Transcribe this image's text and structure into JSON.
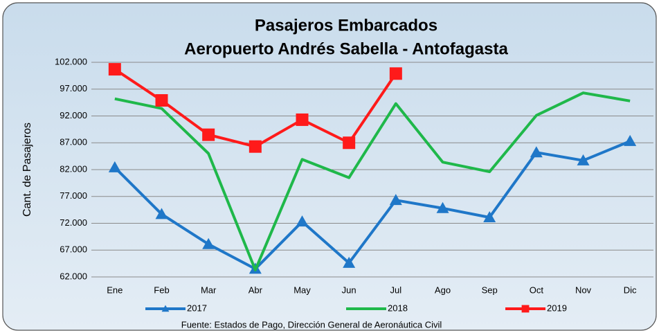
{
  "chart_data": {
    "type": "line",
    "title": "Pasajeros Embarcados",
    "subtitle": "Aeropuerto Andrés Sabella - Antofagasta",
    "y_label": "Cant. de Pasajeros",
    "source": "Fuente: Estados de Pago, Dirección General de Aeronáutica Civil",
    "categories": [
      "Ene",
      "Feb",
      "Mar",
      "Abr",
      "May",
      "Jun",
      "Jul",
      "Ago",
      "Sep",
      "Oct",
      "Nov",
      "Dic"
    ],
    "series": [
      {
        "name": "2017",
        "color": "#1f77c8",
        "marker": "triangle",
        "values": [
          82400,
          73700,
          68100,
          63500,
          72300,
          64600,
          76300,
          74800,
          73100,
          85200,
          83700,
          87300
        ]
      },
      {
        "name": "2018",
        "color": "#1fb84a",
        "marker": "none",
        "values": [
          95200,
          93400,
          85000,
          63300,
          83900,
          80500,
          94300,
          83400,
          81600,
          92100,
          96300,
          94800
        ]
      },
      {
        "name": "2019",
        "color": "#ff1a1a",
        "marker": "square",
        "values": [
          100700,
          94900,
          88500,
          86300,
          91300,
          87000,
          99900,
          null,
          null,
          null,
          null,
          null
        ]
      }
    ],
    "ylim": [
      62000,
      102000
    ],
    "yticks": [
      {
        "value": 62000,
        "label": "62.000"
      },
      {
        "value": 67000,
        "label": "67.000"
      },
      {
        "value": 72000,
        "label": "72.000"
      },
      {
        "value": 77000,
        "label": "77.000"
      },
      {
        "value": 82000,
        "label": "82.000"
      },
      {
        "value": 87000,
        "label": "87.000"
      },
      {
        "value": 92000,
        "label": "92.000"
      },
      {
        "value": 97000,
        "label": "97.000"
      },
      {
        "value": 102000,
        "label": "102.000"
      }
    ],
    "grid": true,
    "legend": "bottom"
  }
}
